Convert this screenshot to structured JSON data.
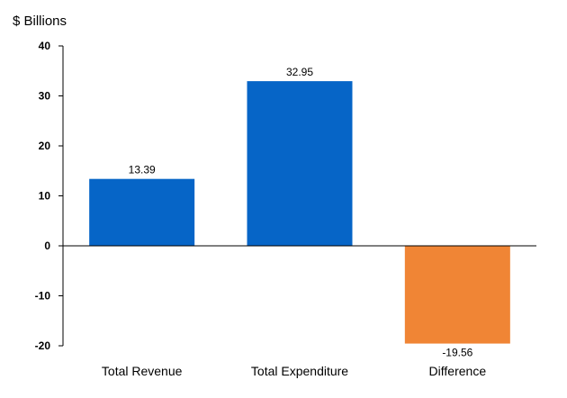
{
  "chart_data": {
    "type": "bar",
    "ylabel": "$ Billions",
    "xlabel": "",
    "title": "",
    "categories": [
      "Total Revenue",
      "Total Expenditure",
      "Difference"
    ],
    "values": [
      13.39,
      32.95,
      -19.56
    ],
    "value_labels": [
      "13.39",
      "32.95",
      "-19.56"
    ],
    "colors": [
      "#0665c7",
      "#0665c7",
      "#f08535"
    ],
    "ylim": [
      -20,
      40
    ],
    "yticks": [
      40,
      30,
      20,
      10,
      0,
      -10,
      -20
    ],
    "ytick_labels": [
      "40",
      "30",
      "20",
      "10",
      "0",
      "-10",
      "-20"
    ],
    "grid": false,
    "legend": "none"
  }
}
